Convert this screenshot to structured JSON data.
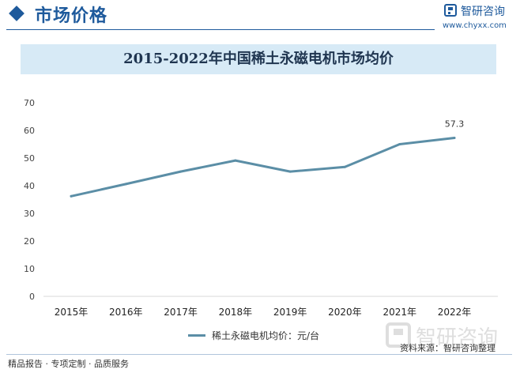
{
  "header": {
    "title": "市场价格",
    "logo_text": "智研咨询",
    "logo_url": "www.chyxx.com"
  },
  "footer": {
    "left_text": "精品报告 · 专项定制 · 品质服务",
    "source_text": "资料来源：智研咨询整理"
  },
  "colors": {
    "brand": "#1e5a9c",
    "line": "#5b8ea6",
    "title_band": "#d7eaf6"
  },
  "chart_data": {
    "type": "line",
    "title": "2015-2022年中国稀土永磁电机市场均价",
    "categories": [
      "2015年",
      "2016年",
      "2017年",
      "2018年",
      "2019年",
      "2020年",
      "2021年",
      "2022年"
    ],
    "series": [
      {
        "name": "稀土永磁电机均价：元/台",
        "values": [
          36.2,
          40.6,
          45.1,
          49.1,
          45.1,
          46.8,
          55.0,
          57.3
        ]
      }
    ],
    "data_labels": [
      {
        "index": 7,
        "text": "57.3"
      }
    ],
    "ylim": [
      0,
      70
    ],
    "yticks": [
      0,
      10,
      20,
      30,
      40,
      50,
      60,
      70
    ],
    "grid": false,
    "legend_position": "bottom"
  }
}
